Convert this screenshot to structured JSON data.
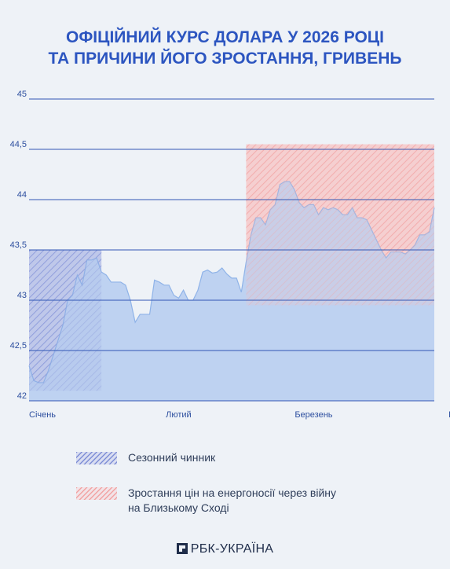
{
  "title": {
    "line1": "ОФІЦІЙНИЙ КУРС ДОЛАРА У 2026 РОЦІ",
    "line2": "ТА ПРИЧИНИ ЙОГО ЗРОСТАННЯ, ГРИВЕНЬ"
  },
  "chart_data": {
    "type": "area",
    "title": "ОФІЦІЙНИЙ КУРС ДОЛАРА У 2026 РОЦІ ТА ПРИЧИНИ ЙОГО ЗРОСТАННЯ, ГРИВЕНЬ",
    "xlabel": "",
    "ylabel": "",
    "ylim": [
      42,
      45
    ],
    "yticks": [
      42,
      42.5,
      43,
      43.5,
      44,
      44.5,
      45
    ],
    "ytick_labels": [
      "42",
      "42,5",
      "43",
      "43,5",
      "44",
      "44,5",
      "45"
    ],
    "x_ticks": [
      {
        "label": "Січень",
        "date": "2026-01-01"
      },
      {
        "label": "Лютий",
        "date": "2026-02-01"
      },
      {
        "label": "Березень",
        "date": "2026-03-01"
      },
      {
        "label": "Квітень",
        "date": "2026-04-01"
      }
    ],
    "grid": true,
    "series": [
      {
        "values": [
          [
            "2026-01-01",
            42.35
          ],
          [
            "2026-01-02",
            42.2
          ],
          [
            "2026-01-03",
            42.18
          ],
          [
            "2026-01-04",
            42.18
          ],
          [
            "2026-01-05",
            42.3
          ],
          [
            "2026-01-06",
            42.45
          ],
          [
            "2026-01-07",
            42.6
          ],
          [
            "2026-01-08",
            42.75
          ],
          [
            "2026-01-09",
            43.0
          ],
          [
            "2026-01-10",
            43.05
          ],
          [
            "2026-01-11",
            43.25
          ],
          [
            "2026-01-12",
            43.15
          ],
          [
            "2026-01-13",
            43.4
          ],
          [
            "2026-01-14",
            43.4
          ],
          [
            "2026-01-15",
            43.42
          ],
          [
            "2026-01-16",
            43.28
          ],
          [
            "2026-01-17",
            43.25
          ],
          [
            "2026-01-18",
            43.18
          ],
          [
            "2026-01-19",
            43.18
          ],
          [
            "2026-01-20",
            43.18
          ],
          [
            "2026-01-21",
            43.15
          ],
          [
            "2026-01-22",
            43.0
          ],
          [
            "2026-01-23",
            42.78
          ],
          [
            "2026-01-24",
            42.86
          ],
          [
            "2026-01-25",
            42.86
          ],
          [
            "2026-01-26",
            42.86
          ],
          [
            "2026-01-27",
            43.2
          ],
          [
            "2026-01-28",
            43.18
          ],
          [
            "2026-01-29",
            43.15
          ],
          [
            "2026-01-30",
            43.15
          ],
          [
            "2026-01-31",
            43.05
          ],
          [
            "2026-02-01",
            43.02
          ],
          [
            "2026-02-02",
            43.1
          ],
          [
            "2026-02-03",
            43.0
          ],
          [
            "2026-02-04",
            43.0
          ],
          [
            "2026-02-05",
            43.1
          ],
          [
            "2026-02-06",
            43.28
          ],
          [
            "2026-02-07",
            43.3
          ],
          [
            "2026-02-08",
            43.27
          ],
          [
            "2026-02-09",
            43.28
          ],
          [
            "2026-02-10",
            43.32
          ],
          [
            "2026-02-11",
            43.26
          ],
          [
            "2026-02-12",
            43.22
          ],
          [
            "2026-02-13",
            43.22
          ],
          [
            "2026-02-14",
            43.08
          ],
          [
            "2026-02-15",
            43.38
          ],
          [
            "2026-02-16",
            43.65
          ],
          [
            "2026-02-17",
            43.82
          ],
          [
            "2026-02-18",
            43.82
          ],
          [
            "2026-02-19",
            43.75
          ],
          [
            "2026-02-20",
            43.9
          ],
          [
            "2026-02-21",
            43.95
          ],
          [
            "2026-02-22",
            44.15
          ],
          [
            "2026-02-23",
            44.18
          ],
          [
            "2026-02-24",
            44.18
          ],
          [
            "2026-02-25",
            44.1
          ],
          [
            "2026-02-26",
            43.97
          ],
          [
            "2026-02-27",
            43.92
          ],
          [
            "2026-02-28",
            43.95
          ],
          [
            "2026-03-01",
            43.95
          ],
          [
            "2026-03-02",
            43.85
          ],
          [
            "2026-03-03",
            43.92
          ],
          [
            "2026-03-04",
            43.9
          ],
          [
            "2026-03-05",
            43.92
          ],
          [
            "2026-03-06",
            43.9
          ],
          [
            "2026-03-07",
            43.85
          ],
          [
            "2026-03-08",
            43.85
          ],
          [
            "2026-03-09",
            43.92
          ],
          [
            "2026-03-10",
            43.82
          ],
          [
            "2026-03-11",
            43.82
          ],
          [
            "2026-03-12",
            43.8
          ],
          [
            "2026-03-13",
            43.7
          ],
          [
            "2026-03-14",
            43.6
          ],
          [
            "2026-03-15",
            43.5
          ],
          [
            "2026-03-16",
            43.42
          ],
          [
            "2026-03-17",
            43.48
          ],
          [
            "2026-03-18",
            43.48
          ],
          [
            "2026-03-19",
            43.48
          ],
          [
            "2026-03-20",
            43.46
          ],
          [
            "2026-03-21",
            43.5
          ],
          [
            "2026-03-22",
            43.55
          ],
          [
            "2026-03-23",
            43.65
          ],
          [
            "2026-03-24",
            43.65
          ],
          [
            "2026-03-25",
            43.68
          ],
          [
            "2026-03-26",
            43.92
          ]
        ]
      }
    ],
    "highlight_regions": [
      {
        "label": "Сезонний чинник",
        "from": "2026-01-01",
        "to": "2026-01-16",
        "y_from": 42.1,
        "y_to": 43.5,
        "color": "#8c9bdb"
      },
      {
        "label": "Зростання цін на енергоносії через війну на Близькому Сході",
        "from": "2026-02-15",
        "to": "2026-03-26",
        "y_from": 42.95,
        "y_to": 44.55,
        "color": "#f3a9a9"
      }
    ],
    "colors": {
      "area": "#bed2f1",
      "line": "#8fb3e8",
      "grid": "#3257b5",
      "tick_text": "#2d4f9f"
    }
  },
  "legend": {
    "seasonal": "Сезонний чинник",
    "energy_line1": "Зростання цін на енергоносії через війну",
    "energy_line2": "на Близькому Сході"
  },
  "logo": {
    "text": "РБК-УКРАЇНА"
  }
}
